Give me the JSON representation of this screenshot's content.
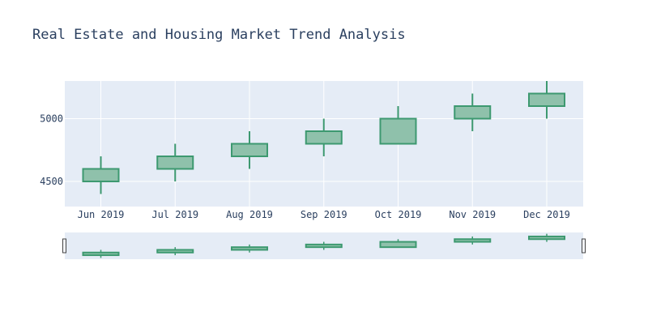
{
  "chart_data": {
    "type": "candlestick",
    "title": "Real Estate and Housing Market Trend Analysis",
    "xlabel": "",
    "ylabel": "",
    "categories": [
      "Jun 2019",
      "Jul 2019",
      "Aug 2019",
      "Sep 2019",
      "Oct 2019",
      "Nov 2019",
      "Dec 2019"
    ],
    "open": [
      4500,
      4600,
      4700,
      4800,
      4800,
      5000,
      5100
    ],
    "high": [
      4700,
      4800,
      4900,
      5000,
      5100,
      5200,
      5300
    ],
    "low": [
      4400,
      4500,
      4600,
      4700,
      4800,
      4900,
      5000
    ],
    "close": [
      4600,
      4700,
      4800,
      4900,
      5000,
      5100,
      5200
    ],
    "ylim": [
      4300,
      5300
    ],
    "yticks": [
      4500,
      5000
    ],
    "grid": true,
    "rangeslider": true,
    "colors": {
      "increasing": "#3d9970",
      "increasing_fill": "#8fc1ab",
      "plot_bg": "#e5ecf6",
      "grid": "#ffffff",
      "text": "#2a3f5f"
    }
  }
}
